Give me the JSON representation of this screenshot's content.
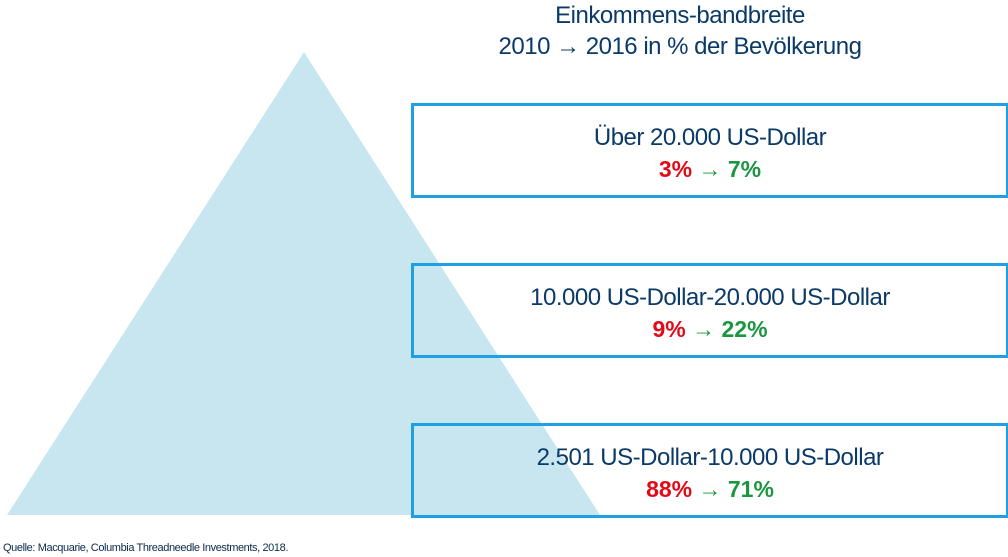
{
  "title": {
    "line1": "Einkommens-bandbreite",
    "line2_start": "2010",
    "line2_arrow": "→",
    "line2_end": "2016 in % der Bevölkerung"
  },
  "tiers": [
    {
      "label": "Über 20.000 US-Dollar",
      "from": "3%",
      "to": "7%"
    },
    {
      "label": "10.000 US-Dollar-20.000 US-Dollar",
      "from": "9%",
      "to": "22%"
    },
    {
      "label": "2.501 US-Dollar-10.000 US-Dollar",
      "from": "88%",
      "to": "71%"
    }
  ],
  "arrow": "→",
  "source": "Quelle: Macquarie, Columbia Threadneedle Investments, 2018.",
  "colors": {
    "triangle": "#c8e6f0",
    "border": "#1ea0e2",
    "navy": "#0b3a68",
    "red": "#e20a17",
    "green": "#1a9640"
  }
}
